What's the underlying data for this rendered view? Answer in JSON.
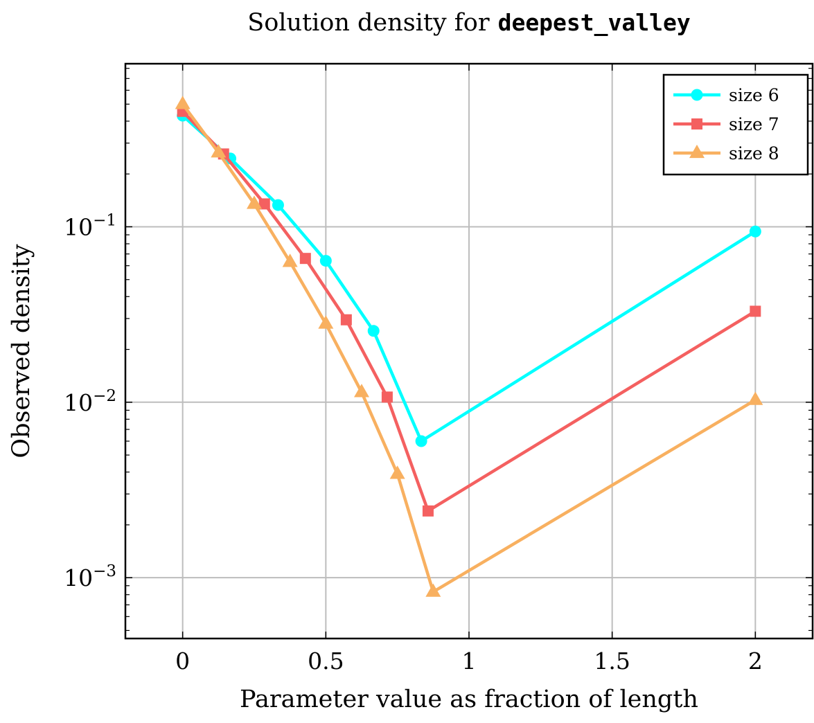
{
  "chart_data": {
    "type": "line",
    "title_prefix": "Solution density for",
    "title_code": "deepest_valley",
    "xlabel": "Parameter value as fraction of length",
    "ylabel": "Observed density",
    "x_scale": "linear",
    "y_scale": "log",
    "xlim": [
      -0.2,
      2.2
    ],
    "ylim": [
      0.00045,
      0.85
    ],
    "x_ticks": [
      0,
      0.5,
      1,
      1.5,
      2
    ],
    "x_tick_labels": [
      "0",
      "0.5",
      "1",
      "1.5",
      "2"
    ],
    "y_ticks": [
      0.001,
      0.01,
      0.1
    ],
    "y_tick_bases": [
      "10",
      "10",
      "10"
    ],
    "y_tick_exponents": [
      "−3",
      "−2",
      "−1"
    ],
    "grid": true,
    "legend_position": "top-right",
    "series": [
      {
        "name": "size 6",
        "color": "#00ffff",
        "marker": "circle",
        "x": [
          0,
          0.1667,
          0.3333,
          0.5,
          0.6667,
          0.8333,
          2
        ],
        "y": [
          0.43,
          0.245,
          0.133,
          0.064,
          0.0255,
          0.006,
          0.094
        ]
      },
      {
        "name": "size 7",
        "color": "#f46060",
        "marker": "square",
        "x": [
          0,
          0.1429,
          0.2857,
          0.4286,
          0.5714,
          0.7143,
          0.8571,
          2
        ],
        "y": [
          0.455,
          0.26,
          0.135,
          0.066,
          0.0295,
          0.0107,
          0.0024,
          0.033
        ]
      },
      {
        "name": "size 8",
        "color": "#f8b060",
        "marker": "triangle",
        "x": [
          0,
          0.125,
          0.25,
          0.375,
          0.5,
          0.625,
          0.75,
          0.875,
          2
        ],
        "y": [
          0.5,
          0.265,
          0.135,
          0.063,
          0.028,
          0.0114,
          0.0039,
          0.00083,
          0.0103
        ]
      }
    ]
  }
}
